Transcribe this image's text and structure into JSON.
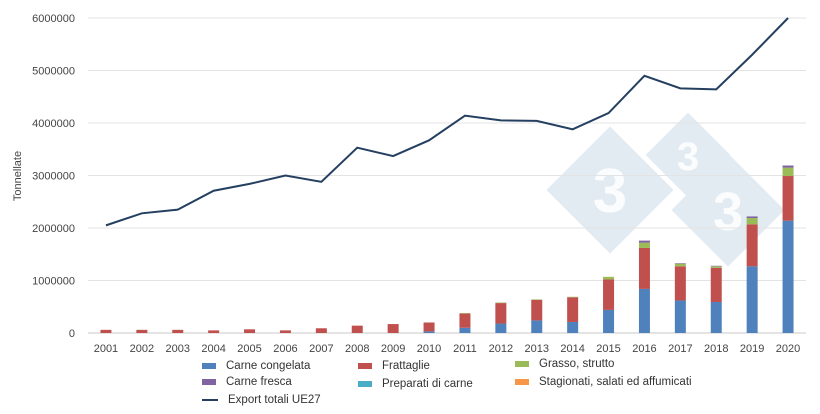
{
  "chart_data": {
    "type": "bar",
    "stacked": true,
    "title": "",
    "xlabel": "",
    "ylabel": "Tonnellate",
    "ylim": [
      0,
      6000000
    ],
    "yticks": [
      "0",
      "1000000",
      "2000000",
      "3000000",
      "4000000",
      "5000000",
      "6000000"
    ],
    "grid": true,
    "legend_position": "bottom",
    "categories": [
      "2001",
      "2002",
      "2003",
      "2004",
      "2005",
      "2006",
      "2007",
      "2008",
      "2009",
      "2010",
      "2011",
      "2012",
      "2013",
      "2014",
      "2015",
      "2016",
      "2017",
      "2018",
      "2019",
      "2020"
    ],
    "series": [
      {
        "name": "Carne congelata",
        "color": "#4f81bd",
        "values": [
          0,
          0,
          0,
          0,
          0,
          0,
          0,
          0,
          0,
          30000,
          100000,
          180000,
          240000,
          210000,
          440000,
          840000,
          620000,
          590000,
          1270000,
          2140000
        ]
      },
      {
        "name": "Frattaglie",
        "color": "#c0504d",
        "values": [
          60000,
          60000,
          60000,
          50000,
          70000,
          50000,
          90000,
          140000,
          170000,
          170000,
          270000,
          390000,
          390000,
          470000,
          580000,
          780000,
          650000,
          650000,
          800000,
          850000
        ]
      },
      {
        "name": "Grasso, strutto",
        "color": "#9bbb59",
        "values": [
          0,
          0,
          0,
          0,
          0,
          0,
          0,
          0,
          0,
          0,
          10000,
          10000,
          10000,
          10000,
          50000,
          100000,
          50000,
          30000,
          120000,
          160000
        ]
      },
      {
        "name": "Carne fresca",
        "color": "#8064a2",
        "values": [
          0,
          0,
          0,
          0,
          0,
          0,
          0,
          0,
          0,
          0,
          0,
          0,
          0,
          0,
          0,
          40000,
          10000,
          10000,
          30000,
          40000
        ]
      },
      {
        "name": "Preparati di carne",
        "color": "#4bacc6",
        "values": [
          0,
          0,
          0,
          0,
          0,
          0,
          0,
          0,
          0,
          0,
          0,
          0,
          0,
          0,
          0,
          0,
          0,
          0,
          0,
          0
        ]
      },
      {
        "name": "Stagionati, salati ed affumicati",
        "color": "#f79646",
        "values": [
          0,
          0,
          0,
          0,
          0,
          0,
          0,
          0,
          0,
          0,
          0,
          0,
          0,
          0,
          0,
          0,
          0,
          0,
          0,
          0
        ]
      }
    ],
    "line_series": {
      "name": "Export totali UE27",
      "type": "line",
      "color": "#243f60",
      "values": [
        2050000,
        2280000,
        2350000,
        2710000,
        2840000,
        3000000,
        2880000,
        3530000,
        3370000,
        3670000,
        4140000,
        4050000,
        4040000,
        3880000,
        4190000,
        4900000,
        4660000,
        4640000,
        5300000,
        6000000
      ]
    }
  },
  "watermark": "333"
}
